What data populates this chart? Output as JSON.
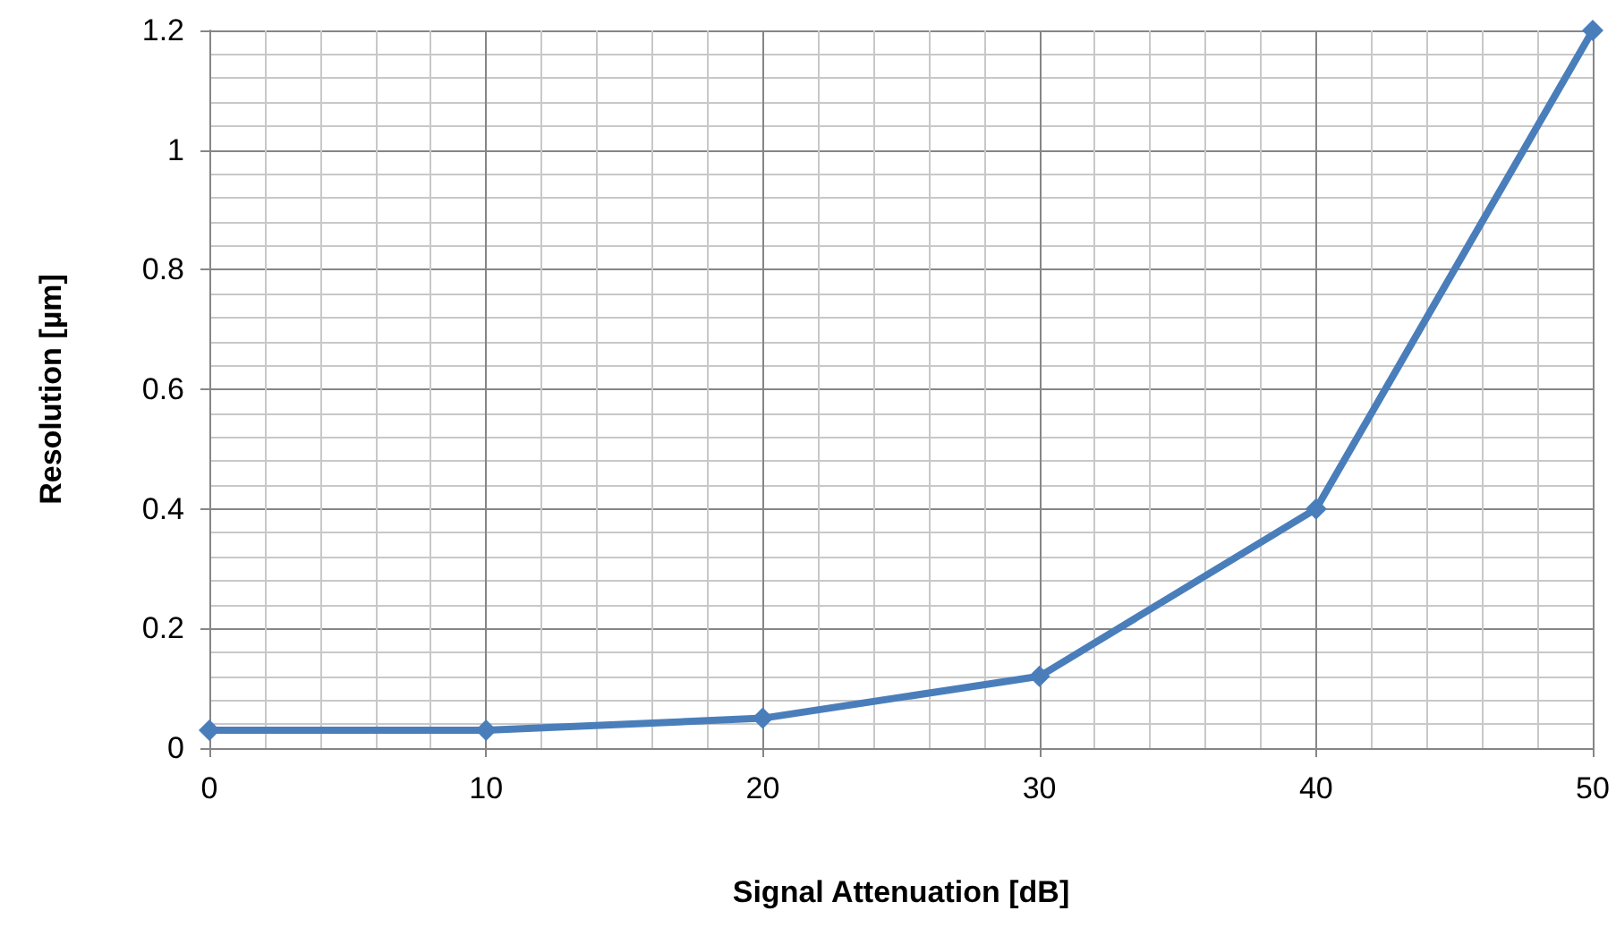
{
  "chart_data": {
    "type": "line",
    "xlabel": "Signal Attenuation [dB]",
    "ylabel": "Resolution [µm]",
    "x": [
      0,
      10,
      20,
      30,
      40,
      50
    ],
    "series": [
      {
        "color": "#4a7ebb",
        "values": [
          0.03,
          0.03,
          0.05,
          0.12,
          0.4,
          1.2
        ]
      }
    ],
    "xlim": [
      0,
      50
    ],
    "xticks": [
      0,
      10,
      20,
      30,
      40,
      50
    ],
    "ylim": [
      0,
      1.2
    ],
    "yticks": [
      0,
      0.2,
      0.4,
      0.6,
      0.8,
      1,
      1.2
    ],
    "grid": true,
    "marker": "diamond",
    "line_style": "solid"
  }
}
